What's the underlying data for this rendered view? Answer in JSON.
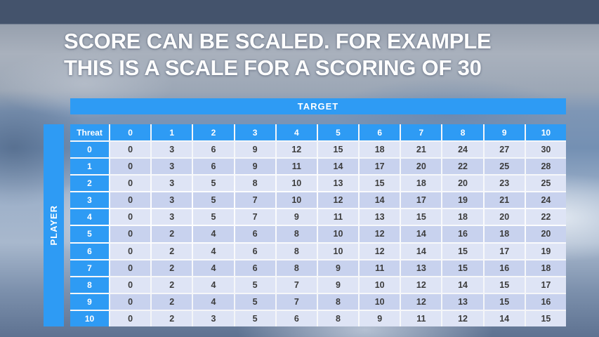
{
  "slide": {
    "title_line1": "SCORE CAN BE SCALED. FOR EXAMPLE",
    "title_line2": "THIS IS A SCALE FOR A SCORING OF 30"
  },
  "chart_data": {
    "type": "table",
    "title": "SCORE CAN BE SCALED. FOR EXAMPLE THIS IS A SCALE FOR A SCORING OF 30",
    "target_label": "TARGET",
    "player_label": "PLAYER",
    "corner": "Threat",
    "columns": [
      "0",
      "1",
      "2",
      "3",
      "4",
      "5",
      "6",
      "7",
      "8",
      "9",
      "10"
    ],
    "row_headers": [
      "0",
      "1",
      "2",
      "3",
      "4",
      "5",
      "6",
      "7",
      "8",
      "9",
      "10"
    ],
    "rows": [
      [
        0,
        3,
        6,
        9,
        12,
        15,
        18,
        21,
        24,
        27,
        30
      ],
      [
        0,
        3,
        6,
        9,
        11,
        14,
        17,
        20,
        22,
        25,
        28
      ],
      [
        0,
        3,
        5,
        8,
        10,
        13,
        15,
        18,
        20,
        23,
        25
      ],
      [
        0,
        3,
        5,
        7,
        10,
        12,
        14,
        17,
        19,
        21,
        24
      ],
      [
        0,
        3,
        5,
        7,
        9,
        11,
        13,
        15,
        18,
        20,
        22
      ],
      [
        0,
        2,
        4,
        6,
        8,
        10,
        12,
        14,
        16,
        18,
        20
      ],
      [
        0,
        2,
        4,
        6,
        8,
        10,
        12,
        14,
        15,
        17,
        19
      ],
      [
        0,
        2,
        4,
        6,
        8,
        9,
        11,
        13,
        15,
        16,
        18
      ],
      [
        0,
        2,
        4,
        5,
        7,
        9,
        10,
        12,
        14,
        15,
        17
      ],
      [
        0,
        2,
        4,
        5,
        7,
        8,
        10,
        12,
        13,
        15,
        16
      ],
      [
        0,
        2,
        3,
        5,
        6,
        8,
        9,
        11,
        12,
        14,
        15
      ]
    ]
  },
  "colors": {
    "header_blue": "#2e9bf4",
    "row_light": "#dee4f5",
    "row_dark": "#c8d2ee",
    "title_text": "#ffffff"
  }
}
